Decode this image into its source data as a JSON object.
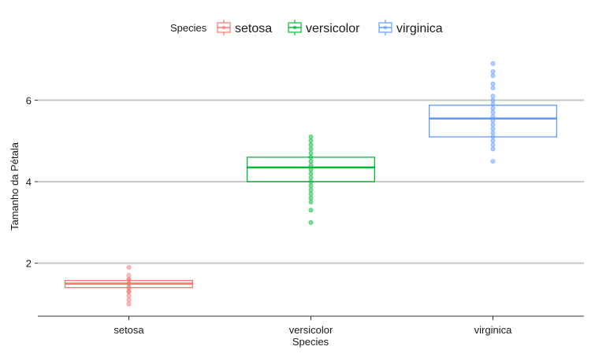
{
  "chart_data": {
    "type": "box",
    "xlabel": "Species",
    "ylabel": "Tamanho da Pétala",
    "ylim": [
      0.7,
      7.3
    ],
    "yticks": [
      2,
      4,
      6
    ],
    "grid": "horizontal",
    "legend": {
      "title": "Species",
      "placement": "top",
      "entries": [
        "setosa",
        "versicolor",
        "virginica"
      ]
    },
    "categories": [
      "setosa",
      "versicolor",
      "virginica"
    ],
    "series": [
      {
        "name": "setosa",
        "color": "#F8766D",
        "q1": 1.4,
        "median": 1.5,
        "q3": 1.575,
        "points": [
          1.0,
          1.1,
          1.2,
          1.3,
          1.3,
          1.4,
          1.4,
          1.5,
          1.5,
          1.6,
          1.6,
          1.7,
          1.9
        ]
      },
      {
        "name": "versicolor",
        "color": "#00BA38",
        "q1": 4.0,
        "median": 4.35,
        "q3": 4.6,
        "points": [
          3.0,
          3.3,
          3.5,
          3.6,
          3.7,
          3.8,
          3.9,
          4.0,
          4.1,
          4.2,
          4.3,
          4.4,
          4.5,
          4.6,
          4.7,
          4.8,
          4.9,
          5.0,
          5.1
        ]
      },
      {
        "name": "virginica",
        "color": "#619CFF",
        "q1": 5.1,
        "median": 5.55,
        "q3": 5.875,
        "points": [
          4.5,
          4.8,
          4.9,
          5.0,
          5.1,
          5.2,
          5.3,
          5.4,
          5.5,
          5.6,
          5.7,
          5.8,
          5.9,
          6.0,
          6.1,
          6.3,
          6.4,
          6.6,
          6.7,
          6.9
        ]
      }
    ]
  }
}
